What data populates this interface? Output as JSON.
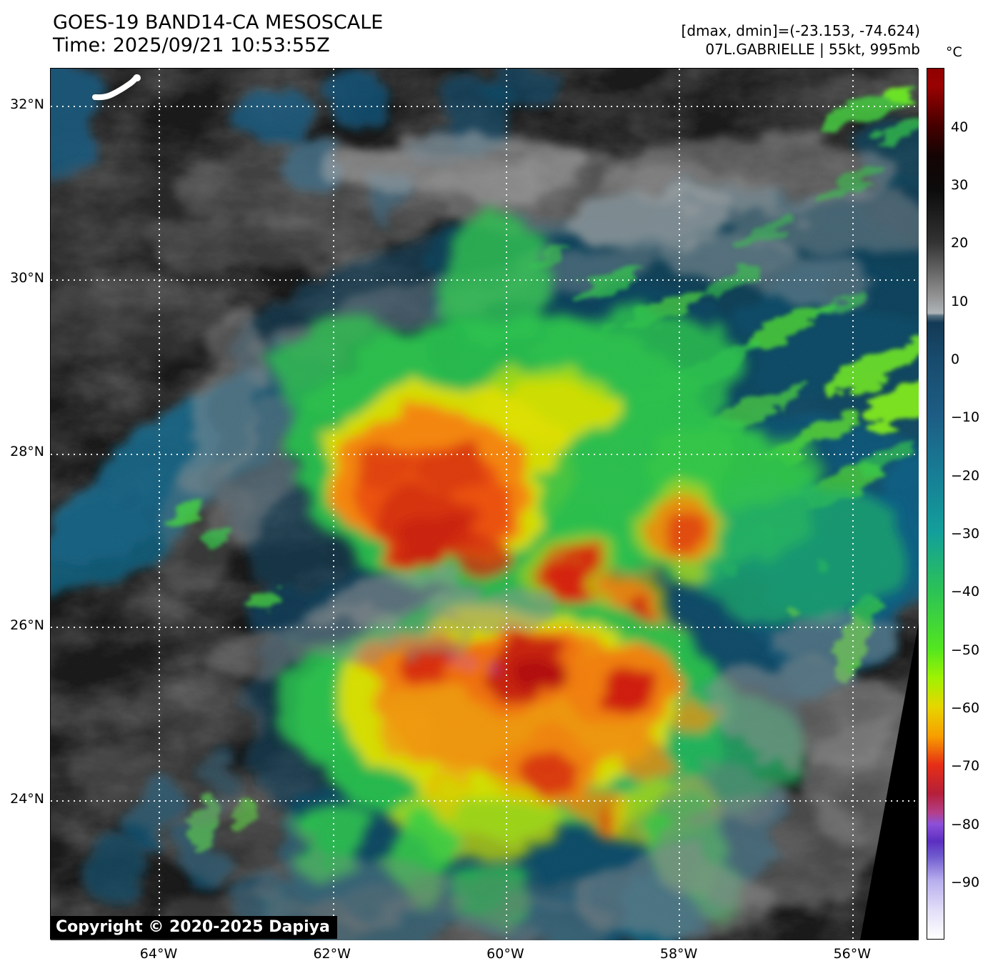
{
  "header": {
    "title": "GOES-19 BAND14-CA MESOSCALE",
    "time": "Time: 2025/09/21 10:53:55Z",
    "stats": "[dmax, dmin]=(-23.153, -74.624)",
    "storm": "07L.GABRIELLE | 55kt, 995mb"
  },
  "axes": {
    "lat_ticks": [
      {
        "label": "32°N",
        "deg": 32
      },
      {
        "label": "30°N",
        "deg": 30
      },
      {
        "label": "28°N",
        "deg": 28
      },
      {
        "label": "26°N",
        "deg": 26
      },
      {
        "label": "24°N",
        "deg": 24
      }
    ],
    "lon_ticks": [
      {
        "label": "64°W",
        "deg": -64
      },
      {
        "label": "62°W",
        "deg": -62
      },
      {
        "label": "60°W",
        "deg": -60
      },
      {
        "label": "58°W",
        "deg": -58
      },
      {
        "label": "56°W",
        "deg": -56
      }
    ]
  },
  "colorbar": {
    "unit": "°C",
    "vmax": 50.4,
    "vmin": -99.6,
    "ticks": [
      {
        "label": "40",
        "value": 40
      },
      {
        "label": "30",
        "value": 30
      },
      {
        "label": "20",
        "value": 20
      },
      {
        "label": "10",
        "value": 10
      },
      {
        "label": "0",
        "value": 0
      },
      {
        "label": "−10",
        "value": -10
      },
      {
        "label": "−20",
        "value": -20
      },
      {
        "label": "−30",
        "value": -30
      },
      {
        "label": "−40",
        "value": -40
      },
      {
        "label": "−50",
        "value": -50
      },
      {
        "label": "−60",
        "value": -60
      },
      {
        "label": "−70",
        "value": -70
      },
      {
        "label": "−80",
        "value": -80
      },
      {
        "label": "−90",
        "value": -90
      }
    ],
    "gradient": [
      {
        "t": 0.0,
        "c": "#8f0000"
      },
      {
        "t": 0.02,
        "c": "#9a0202"
      },
      {
        "t": 0.065,
        "c": "#470000"
      },
      {
        "t": 0.1,
        "c": "#140404"
      },
      {
        "t": 0.14,
        "c": "#0c0c0c"
      },
      {
        "t": 0.2,
        "c": "#333333"
      },
      {
        "t": 0.26,
        "c": "#909090"
      },
      {
        "t": 0.281,
        "c": "#aeb4b8"
      },
      {
        "t": 0.284,
        "c": "#57707f"
      },
      {
        "t": 0.292,
        "c": "#143a55"
      },
      {
        "t": 0.333,
        "c": "#184b6d"
      },
      {
        "t": 0.4,
        "c": "#1d5d85"
      },
      {
        "t": 0.467,
        "c": "#177e96"
      },
      {
        "t": 0.533,
        "c": "#139f9b"
      },
      {
        "t": 0.6,
        "c": "#2cc256"
      },
      {
        "t": 0.667,
        "c": "#53e620"
      },
      {
        "t": 0.7,
        "c": "#9ff202"
      },
      {
        "t": 0.733,
        "c": "#e6d600"
      },
      {
        "t": 0.767,
        "c": "#f89f00"
      },
      {
        "t": 0.8,
        "c": "#e62e16"
      },
      {
        "t": 0.833,
        "c": "#b51f3a"
      },
      {
        "t": 0.855,
        "c": "#b43f8a"
      },
      {
        "t": 0.868,
        "c": "#8d50d8"
      },
      {
        "t": 0.888,
        "c": "#5b2fc0"
      },
      {
        "t": 0.905,
        "c": "#6f5ace"
      },
      {
        "t": 0.933,
        "c": "#b7aeee"
      },
      {
        "t": 0.967,
        "c": "#e2def8"
      },
      {
        "t": 1.0,
        "c": "#ffffff"
      }
    ]
  },
  "map": {
    "copyright": "Copyright © 2020-2025 Dapiya",
    "island_icon": "bermuda-island"
  }
}
